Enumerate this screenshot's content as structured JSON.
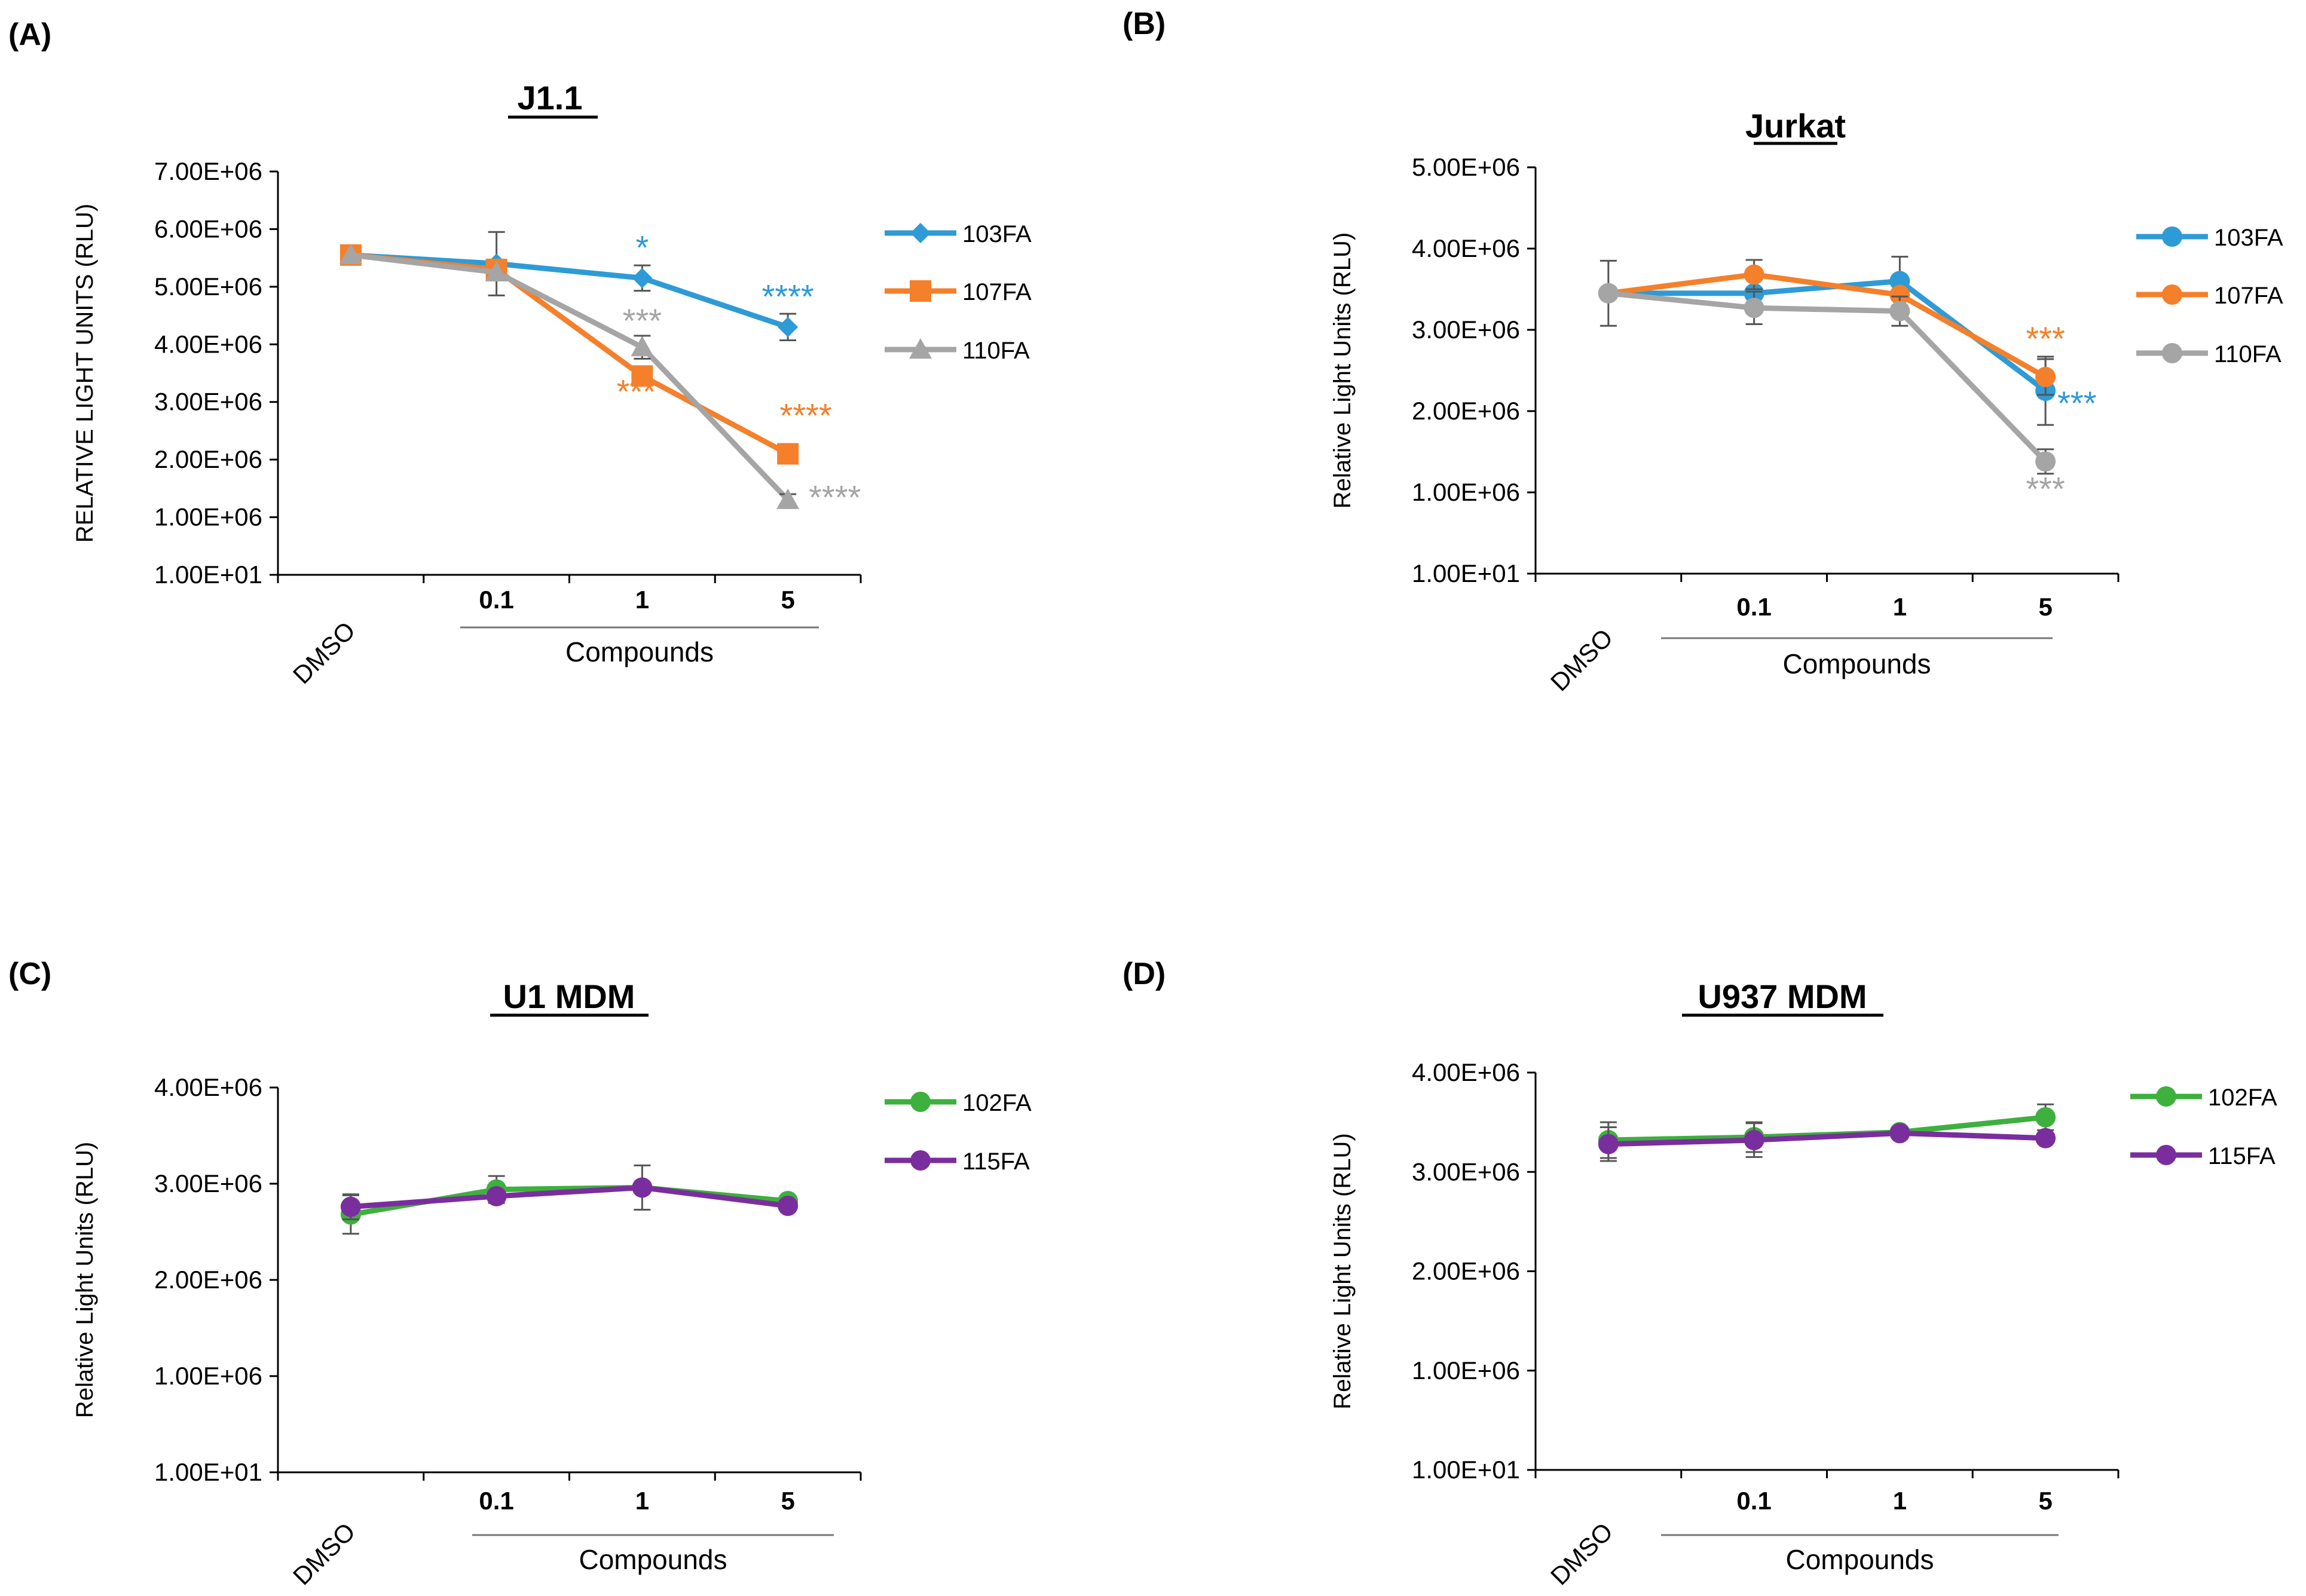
{
  "panels": [
    {
      "label": "(A)",
      "chart_data": {
        "type": "line",
        "title": "J1.1",
        "ylabel": "RELATIVE LIGHT UNITS (RLU)",
        "xlabel": "Compounds",
        "categories": [
          "DMSO",
          "0.1",
          "1",
          "5"
        ],
        "yticks": [
          "1.00E+01",
          "1.00E+06",
          "2.00E+06",
          "3.00E+06",
          "4.00E+06",
          "5.00E+06",
          "6.00E+06",
          "7.00E+06"
        ],
        "ylim": [
          0,
          7000000
        ],
        "series": [
          {
            "name": "103FA",
            "color": "#2E9BD6",
            "marker": "diamond",
            "values": [
              5550000,
              5400000,
              5150000,
              4300000
            ],
            "errors": [
              0,
              550000,
              220000,
              230000
            ],
            "annotations": [
              "",
              "",
              "*",
              "****"
            ]
          },
          {
            "name": "107FA",
            "color": "#F4802B",
            "marker": "square",
            "values": [
              5550000,
              5300000,
              3450000,
              2100000
            ],
            "errors": [
              0,
              0,
              0,
              0
            ],
            "annotations": [
              "",
              "",
              "***",
              "****"
            ]
          },
          {
            "name": "110FA",
            "color": "#A5A5A5",
            "marker": "triangle",
            "values": [
              5550000,
              5250000,
              3950000,
              1300000
            ],
            "errors": [
              0,
              0,
              200000,
              100000
            ],
            "annotations": [
              "",
              "",
              "***",
              "****"
            ]
          }
        ]
      }
    },
    {
      "label": "(B)",
      "chart_data": {
        "type": "line",
        "title": "Jurkat",
        "ylabel": "Relative Light Units (RLU)",
        "xlabel": "Compounds",
        "categories": [
          "DMSO",
          "0.1",
          "1",
          "5"
        ],
        "yticks": [
          "1.00E+01",
          "1.00E+06",
          "2.00E+06",
          "3.00E+06",
          "4.00E+06",
          "5.00E+06"
        ],
        "ylim": [
          0,
          5000000
        ],
        "series": [
          {
            "name": "103FA",
            "color": "#2E9BD6",
            "marker": "circle",
            "values": [
              3450000,
              3450000,
              3600000,
              2250000
            ],
            "errors": [
              400000,
              0,
              300000,
              420000
            ],
            "annotations": [
              "",
              "",
              "",
              "***"
            ]
          },
          {
            "name": "107FA",
            "color": "#F4802B",
            "marker": "circle",
            "values": [
              3450000,
              3680000,
              3430000,
              2420000
            ],
            "errors": [
              0,
              180000,
              0,
              220000
            ],
            "annotations": [
              "",
              "",
              "",
              "***"
            ]
          },
          {
            "name": "110FA",
            "color": "#A5A5A5",
            "marker": "circle",
            "values": [
              3450000,
              3270000,
              3230000,
              1380000
            ],
            "errors": [
              0,
              200000,
              180000,
              150000
            ],
            "annotations": [
              "",
              "",
              "",
              "***"
            ]
          }
        ]
      }
    },
    {
      "label": "(C)",
      "chart_data": {
        "type": "line",
        "title": "U1 MDM",
        "ylabel": "Relative Light Units (RLU)",
        "xlabel": "Compounds",
        "categories": [
          "DMSO",
          "0.1",
          "1",
          "5"
        ],
        "yticks": [
          "1.00E+01",
          "1.00E+06",
          "2.00E+06",
          "3.00E+06",
          "4.00E+06"
        ],
        "ylim": [
          0,
          4000000
        ],
        "series": [
          {
            "name": "102FA",
            "color": "#3DB03D",
            "marker": "circle",
            "values": [
              2680000,
              2940000,
              2960000,
              2820000
            ],
            "errors": [
              200000,
              140000,
              0,
              0
            ],
            "annotations": [
              "",
              "",
              "",
              ""
            ]
          },
          {
            "name": "115FA",
            "color": "#7A2E9E",
            "marker": "circle",
            "values": [
              2760000,
              2870000,
              2960000,
              2770000
            ],
            "errors": [
              130000,
              0,
              230000,
              0
            ],
            "annotations": [
              "",
              "",
              "",
              ""
            ]
          }
        ]
      }
    },
    {
      "label": "(D)",
      "chart_data": {
        "type": "line",
        "title": "U937 MDM",
        "ylabel": "Relative Light Units (RLU)",
        "xlabel": "Compounds",
        "categories": [
          "DMSO",
          "0.1",
          "1",
          "5"
        ],
        "yticks": [
          "1.00E+01",
          "1.00E+06",
          "2.00E+06",
          "3.00E+06",
          "4.00E+06"
        ],
        "ylim": [
          0,
          4000000
        ],
        "series": [
          {
            "name": "102FA",
            "color": "#3DB03D",
            "marker": "circle",
            "values": [
              3320000,
              3350000,
              3400000,
              3550000
            ],
            "errors": [
              180000,
              150000,
              0,
              130000
            ],
            "annotations": [
              "",
              "",
              "",
              ""
            ]
          },
          {
            "name": "115FA",
            "color": "#7A2E9E",
            "marker": "circle",
            "values": [
              3280000,
              3320000,
              3390000,
              3340000
            ],
            "errors": [
              170000,
              170000,
              0,
              0
            ],
            "annotations": [
              "",
              "",
              "",
              ""
            ]
          }
        ]
      }
    }
  ]
}
